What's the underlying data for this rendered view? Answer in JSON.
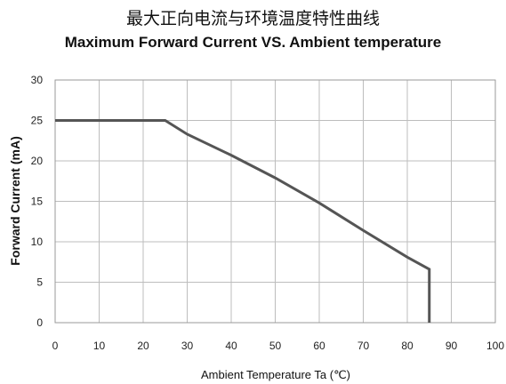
{
  "chart_data": {
    "type": "line",
    "title": "最大正向电流与环境温度特性曲线",
    "subtitle": "Maximum Forward Current VS. Ambient temperature",
    "xlabel": "Ambient Temperature Ta (℃)",
    "ylabel": "Forward Current (mA)",
    "xlim": [
      0,
      100
    ],
    "ylim": [
      0,
      30
    ],
    "xticks": [
      0,
      10,
      20,
      30,
      40,
      50,
      60,
      70,
      80,
      90,
      100
    ],
    "yticks": [
      0,
      5,
      10,
      15,
      20,
      25,
      30
    ],
    "grid": true,
    "legend": "none",
    "line_color": "#555555",
    "series": [
      {
        "x": [
          0,
          25,
          30,
          40,
          50,
          60,
          70,
          80,
          85,
          85
        ],
        "y": [
          25,
          25,
          23.3,
          20.7,
          17.9,
          14.8,
          11.4,
          8.1,
          6.6,
          0
        ]
      }
    ]
  }
}
